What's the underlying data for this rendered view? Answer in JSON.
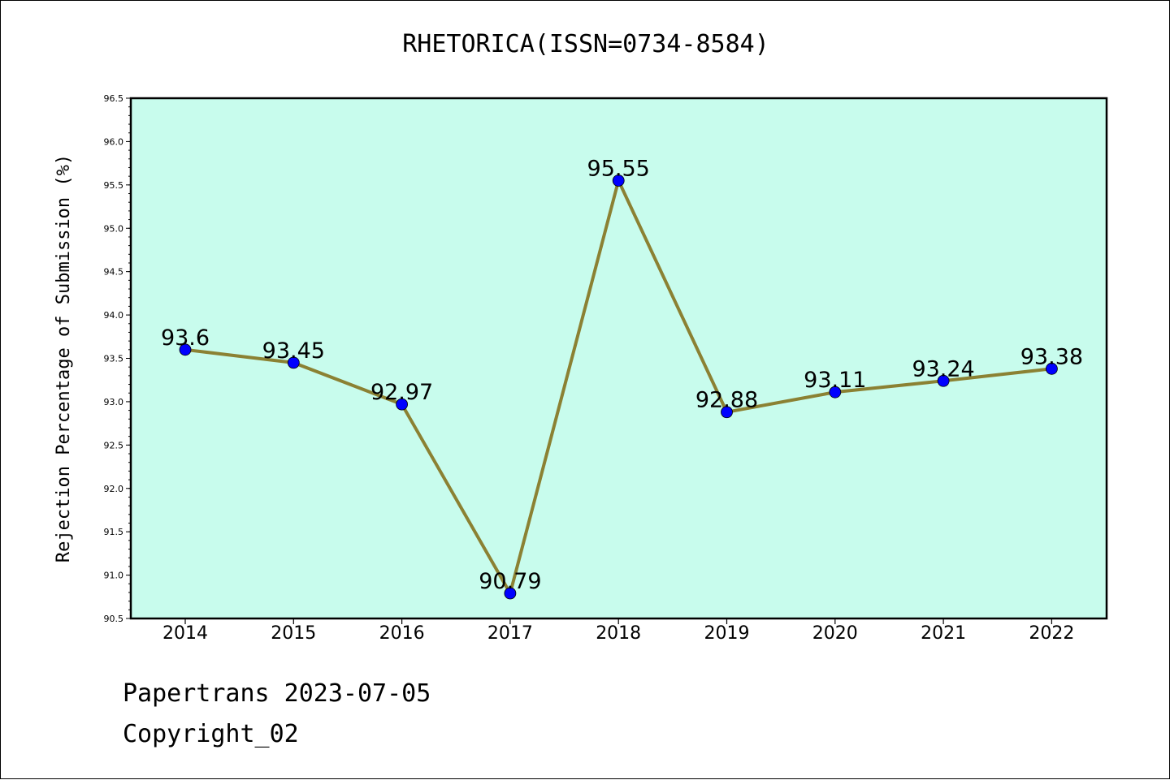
{
  "chart_data": {
    "type": "line",
    "title": "RHETORICA(ISSN=0734-8584)",
    "xlabel": "",
    "ylabel": "Rejection Percentage of Submission (%)",
    "categories": [
      "2014",
      "2015",
      "2016",
      "2017",
      "2018",
      "2019",
      "2020",
      "2021",
      "2022"
    ],
    "series": [
      {
        "values": [
          93.6,
          93.45,
          92.97,
          90.79,
          95.55,
          92.88,
          93.11,
          93.24,
          93.38
        ],
        "data_labels": [
          "93.6",
          "93.45",
          "92.97",
          "90.79",
          "95.55",
          "92.88",
          "93.11",
          "93.24",
          "93.38"
        ]
      }
    ],
    "ylim": [
      90.5,
      96.5
    ],
    "yticks": [
      "90.5",
      "91.0",
      "91.5",
      "92.0",
      "92.5",
      "93.0",
      "93.5",
      "94.0",
      "94.5",
      "95.0",
      "95.5",
      "96.0",
      "96.5"
    ],
    "grid": false,
    "legend": "none"
  },
  "colors": {
    "plot_background": "#c8fced",
    "line": "#8b8133",
    "marker": "#0000ff",
    "axes": "#000000"
  },
  "footer": {
    "line1": "Papertrans 2023-07-05",
    "line2": "Copyright_02"
  }
}
